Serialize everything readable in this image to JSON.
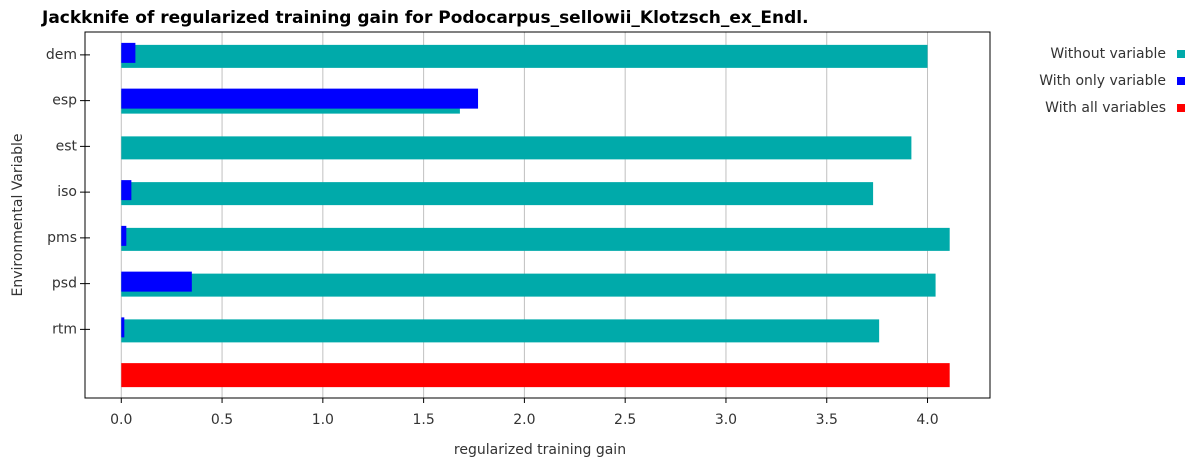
{
  "chart_data": {
    "type": "bar",
    "orientation": "horizontal",
    "title": "Jackknife of regularized training gain for Podocarpus_sellowii_Klotzsch_ex_Endl.",
    "xlabel": "regularized training gain",
    "ylabel": "Environmental Variable",
    "categories": [
      "dem",
      "esp",
      "est",
      "iso",
      "pms",
      "psd",
      "rtm",
      null
    ],
    "series": [
      {
        "name": "Without variable",
        "color": "#00aaaa",
        "values": [
          4.0,
          1.68,
          3.92,
          3.73,
          4.11,
          4.04,
          3.76,
          null
        ]
      },
      {
        "name": "With only variable",
        "color": "#0000ff",
        "values": [
          0.07,
          1.77,
          0,
          0.05,
          0.025,
          0.35,
          0.015,
          null
        ]
      },
      {
        "name": "With all variables",
        "color": "#ff0000",
        "values": [
          null,
          null,
          null,
          null,
          null,
          null,
          null,
          4.11
        ]
      }
    ],
    "xlim": [
      -0.18,
      4.31
    ],
    "xticks": [
      {
        "value": 0,
        "label": "0.0"
      },
      0.5,
      {
        "value": 1,
        "label": "1.0"
      },
      1.5,
      {
        "value": 2,
        "label": "2.0"
      },
      2.5,
      {
        "value": 3,
        "label": "3.0"
      },
      3.5,
      {
        "value": 4,
        "label": "4.0"
      }
    ],
    "grid": true,
    "legend": "right"
  }
}
